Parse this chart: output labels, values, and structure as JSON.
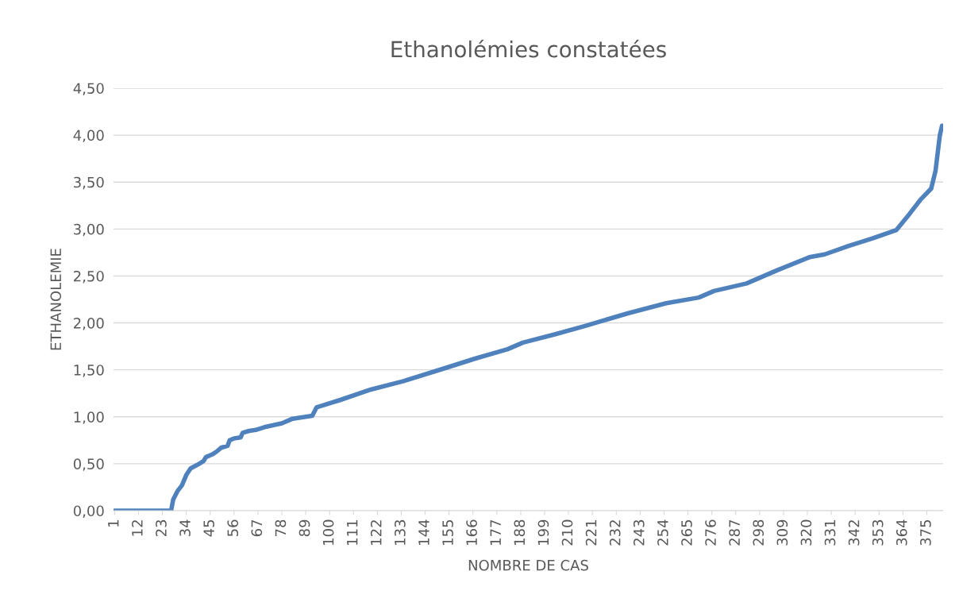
{
  "chart_data": {
    "type": "line",
    "title": "Ethanolémies constatées",
    "xlabel": "NOMBRE DE CAS",
    "ylabel": "ETHANOLEMIE",
    "x": [
      1,
      27,
      28,
      30,
      32,
      34,
      36,
      40,
      42,
      43,
      46,
      48,
      50,
      53,
      54,
      56,
      59,
      60,
      63,
      66,
      70,
      78,
      83,
      92,
      94,
      105,
      119,
      134,
      152,
      167,
      182,
      189,
      204,
      218,
      237,
      255,
      270,
      277,
      292,
      306,
      321,
      328,
      339,
      350,
      361,
      367,
      372,
      377,
      379,
      381,
      382
    ],
    "series": [
      {
        "color": "#4f81bd",
        "values": [
          0,
          0,
          0.12,
          0.21,
          0.27,
          0.38,
          0.45,
          0.5,
          0.53,
          0.57,
          0.6,
          0.63,
          0.67,
          0.69,
          0.75,
          0.77,
          0.78,
          0.83,
          0.85,
          0.86,
          0.89,
          0.93,
          0.98,
          1.01,
          1.1,
          1.18,
          1.29,
          1.38,
          1.51,
          1.62,
          1.72,
          1.79,
          1.88,
          1.97,
          2.1,
          2.21,
          2.27,
          2.34,
          2.42,
          2.56,
          2.7,
          2.73,
          2.82,
          2.9,
          2.99,
          3.16,
          3.31,
          3.43,
          3.62,
          4.0,
          4.1
        ]
      }
    ],
    "xlim": [
      0.5,
      382.5
    ],
    "xticks": [
      1,
      12,
      23,
      34,
      45,
      56,
      67,
      78,
      89,
      100,
      111,
      122,
      133,
      144,
      155,
      166,
      177,
      188,
      199,
      210,
      221,
      232,
      243,
      254,
      265,
      276,
      287,
      298,
      309,
      320,
      331,
      342,
      353,
      364,
      375
    ],
    "ylim": [
      0,
      4.5
    ],
    "yticks": [
      {
        "value": 0,
        "label": "0,00"
      },
      {
        "value": 0.5,
        "label": "0,50"
      },
      {
        "value": 1,
        "label": "1,00"
      },
      {
        "value": 1.5,
        "label": "1,50"
      },
      {
        "value": 2,
        "label": "2,00"
      },
      {
        "value": 2.5,
        "label": "2,50"
      },
      {
        "value": 3,
        "label": "3,00"
      },
      {
        "value": 3.5,
        "label": "3,50"
      },
      {
        "value": 4,
        "label": "4,00"
      },
      {
        "value": 4.5,
        "label": "4,50"
      }
    ],
    "grid": "y",
    "marker": "none",
    "line_style": "solid"
  }
}
